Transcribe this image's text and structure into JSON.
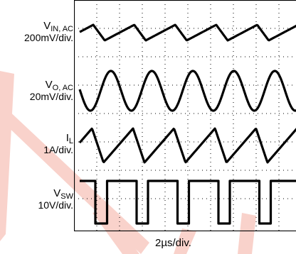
{
  "channels": [
    {
      "symbol": "V",
      "subscript": "IN, AC",
      "scale": "200mV/div."
    },
    {
      "symbol": "V",
      "subscript": "O, AC",
      "scale": "20mV/div."
    },
    {
      "symbol": "I",
      "subscript": "L",
      "scale": "1A/div."
    },
    {
      "symbol": "V",
      "subscript": "SW",
      "scale": "10V/div."
    }
  ],
  "timebase": "2µs/div.",
  "colors": {
    "trace": "#000000",
    "grid": "#000000",
    "watermark": "#f9d2cb"
  },
  "chart_data": {
    "type": "line",
    "x_unit": "µs",
    "grid": true,
    "divisions": {
      "x": 10,
      "y": 8
    },
    "x_range": [
      0,
      20
    ],
    "switching_period": 3.6,
    "duty_cycle": 0.72,
    "series": [
      {
        "name": "VIN, AC",
        "shape": "triangle",
        "peak_to_peak_div": 0.55
      },
      {
        "name": "VO, AC",
        "shape": "sinusoid",
        "peak_to_peak_div": 1.4
      },
      {
        "name": "IL",
        "shape": "triangle",
        "peak_to_peak_div": 1.2
      },
      {
        "name": "VSW",
        "shape": "square",
        "peak_to_peak_div": 1.5
      }
    ]
  }
}
